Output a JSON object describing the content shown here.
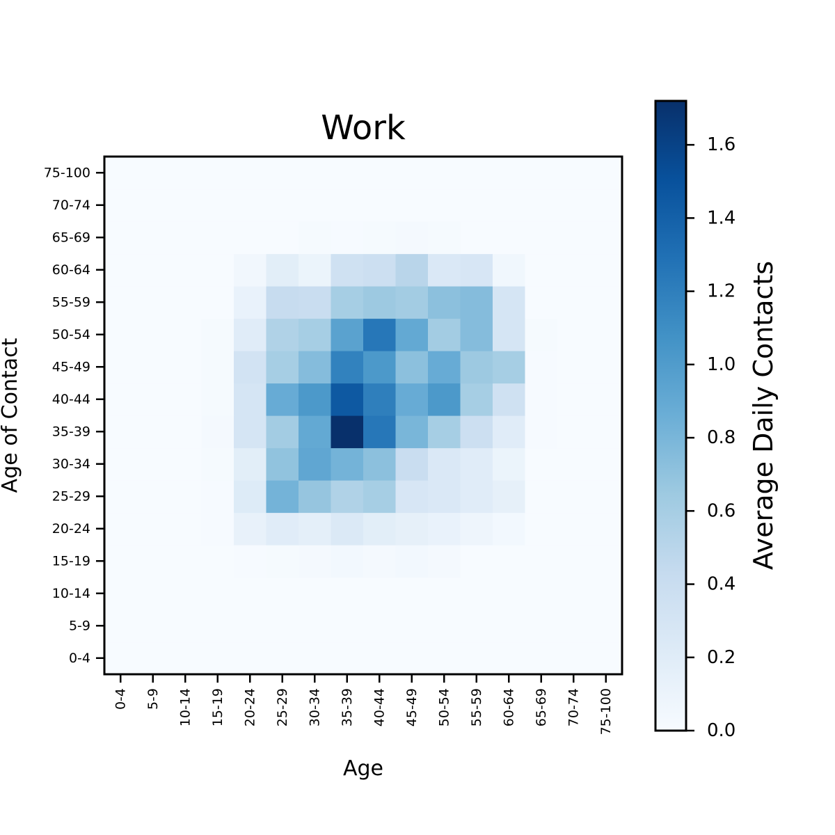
{
  "chart_data": {
    "type": "heatmap",
    "title": "Work",
    "xlabel": "Age",
    "ylabel": "Age of Contact",
    "x_categories": [
      "0-4",
      "5-9",
      "10-14",
      "15-19",
      "20-24",
      "25-29",
      "30-34",
      "35-39",
      "40-44",
      "45-49",
      "50-54",
      "55-59",
      "60-64",
      "65-69",
      "70-74",
      "75-100"
    ],
    "y_categories": [
      "0-4",
      "5-9",
      "10-14",
      "15-19",
      "20-24",
      "25-29",
      "30-34",
      "35-39",
      "40-44",
      "45-49",
      "50-54",
      "55-59",
      "60-64",
      "65-69",
      "70-74",
      "75-100"
    ],
    "colormap": "Blues",
    "values": [
      [
        0,
        0,
        0,
        0,
        0,
        0,
        0,
        0,
        0,
        0,
        0,
        0,
        0,
        0,
        0,
        0
      ],
      [
        0,
        0,
        0,
        0,
        0,
        0,
        0,
        0,
        0,
        0,
        0,
        0,
        0,
        0,
        0,
        0
      ],
      [
        0,
        0,
        0,
        0,
        0,
        0,
        0,
        0,
        0,
        0,
        0,
        0,
        0,
        0,
        0,
        0
      ],
      [
        0,
        0,
        0,
        0,
        0.01,
        0.02,
        0.03,
        0.04,
        0.03,
        0.04,
        0.03,
        0,
        0,
        0,
        0,
        0
      ],
      [
        0,
        0,
        0,
        0.01,
        0.13,
        0.2,
        0.16,
        0.24,
        0.18,
        0.15,
        0.12,
        0.08,
        0.04,
        0,
        0,
        0
      ],
      [
        0,
        0,
        0,
        0.01,
        0.22,
        0.82,
        0.68,
        0.55,
        0.6,
        0.28,
        0.25,
        0.2,
        0.15,
        0,
        0,
        0
      ],
      [
        0,
        0,
        0,
        0.02,
        0.18,
        0.7,
        0.92,
        0.82,
        0.72,
        0.4,
        0.25,
        0.2,
        0.1,
        0,
        0,
        0
      ],
      [
        0,
        0,
        0,
        0.03,
        0.3,
        0.62,
        0.9,
        1.72,
        1.25,
        0.8,
        0.6,
        0.38,
        0.2,
        0.01,
        0,
        0
      ],
      [
        0,
        0,
        0,
        0.02,
        0.3,
        0.88,
        1.02,
        1.45,
        1.2,
        0.88,
        1.02,
        0.6,
        0.35,
        0.01,
        0,
        0
      ],
      [
        0,
        0,
        0,
        0.02,
        0.32,
        0.6,
        0.75,
        1.18,
        1.02,
        0.72,
        0.88,
        0.65,
        0.6,
        0.01,
        0,
        0
      ],
      [
        0,
        0,
        0,
        0.02,
        0.2,
        0.55,
        0.6,
        0.95,
        1.25,
        0.9,
        0.62,
        0.75,
        0.3,
        0.02,
        0,
        0
      ],
      [
        0,
        0,
        0,
        0,
        0.12,
        0.42,
        0.4,
        0.6,
        0.65,
        0.62,
        0.72,
        0.75,
        0.3,
        0,
        0,
        0
      ],
      [
        0,
        0,
        0,
        0,
        0.05,
        0.18,
        0.1,
        0.35,
        0.38,
        0.5,
        0.25,
        0.28,
        0.06,
        0,
        0,
        0
      ],
      [
        0,
        0,
        0,
        0,
        0,
        0,
        0.02,
        0.01,
        0.02,
        0.03,
        0.02,
        0,
        0,
        0,
        0,
        0
      ],
      [
        0,
        0,
        0,
        0,
        0,
        0,
        0,
        0,
        0,
        0,
        0,
        0,
        0,
        0,
        0,
        0
      ],
      [
        0,
        0,
        0,
        0,
        0,
        0,
        0,
        0,
        0,
        0,
        0,
        0,
        0,
        0,
        0,
        0
      ]
    ],
    "colorbar": {
      "label": "Average Daily Contacts",
      "range": [
        0,
        1.72
      ],
      "ticks": [
        0.0,
        0.2,
        0.4,
        0.6,
        0.8,
        1.0,
        1.2,
        1.4,
        1.6
      ],
      "tick_labels": [
        "0.0",
        "0.2",
        "0.4",
        "0.6",
        "0.8",
        "1.0",
        "1.2",
        "1.4",
        "1.6"
      ]
    }
  }
}
